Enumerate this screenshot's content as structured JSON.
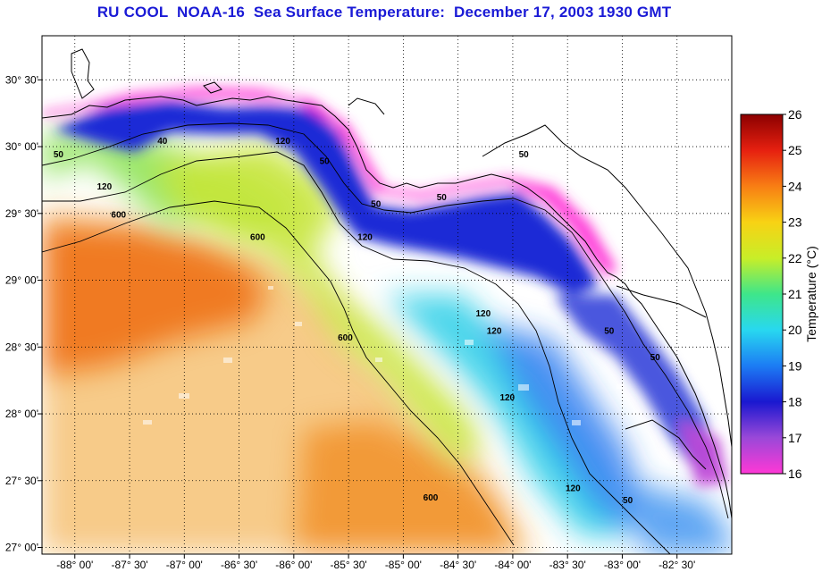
{
  "title": "RU COOL  NOAA-16  Sea Surface Temperature:  December 17, 2003 1930 GMT",
  "map": {
    "lon_range": [
      -88.3,
      -82.0
    ],
    "lat_range": [
      26.95,
      30.83
    ],
    "lon_ticks": [
      {
        "value": -88.0,
        "label": "-88° 00'"
      },
      {
        "value": -87.5,
        "label": "-87° 30'"
      },
      {
        "value": -87.0,
        "label": "-87° 00'"
      },
      {
        "value": -86.5,
        "label": "-86° 30'"
      },
      {
        "value": -86.0,
        "label": "-86° 00'"
      },
      {
        "value": -85.5,
        "label": "-85° 30'"
      },
      {
        "value": -85.0,
        "label": "-85° 00'"
      },
      {
        "value": -84.5,
        "label": "-84° 30'"
      },
      {
        "value": -84.0,
        "label": "-84° 00'"
      },
      {
        "value": -83.5,
        "label": "-83° 30'"
      },
      {
        "value": -83.0,
        "label": "-83° 00'"
      },
      {
        "value": -82.5,
        "label": "-82° 30'"
      }
    ],
    "lat_ticks": [
      {
        "value": 30.5,
        "label": "30° 30'"
      },
      {
        "value": 30.0,
        "label": "30° 00'"
      },
      {
        "value": 29.5,
        "label": "29° 30'"
      },
      {
        "value": 29.0,
        "label": "29° 00'"
      },
      {
        "value": 28.5,
        "label": "28° 30'"
      },
      {
        "value": 28.0,
        "label": "28° 00'"
      },
      {
        "value": 27.5,
        "label": "27° 30'"
      },
      {
        "value": 27.0,
        "label": "27° 00'"
      }
    ],
    "contour_labels": [
      {
        "text": "50",
        "lon": -88.15,
        "lat": 29.92
      },
      {
        "text": "120",
        "lon": -87.73,
        "lat": 29.68
      },
      {
        "text": "600",
        "lon": -87.6,
        "lat": 29.47
      },
      {
        "text": "40",
        "lon": -87.2,
        "lat": 30.02
      },
      {
        "text": "120",
        "lon": -86.1,
        "lat": 30.02
      },
      {
        "text": "600",
        "lon": -86.33,
        "lat": 29.3
      },
      {
        "text": "50",
        "lon": -85.72,
        "lat": 29.87
      },
      {
        "text": "50",
        "lon": -85.25,
        "lat": 29.55
      },
      {
        "text": "50",
        "lon": -84.65,
        "lat": 29.6
      },
      {
        "text": "120",
        "lon": -85.35,
        "lat": 29.3
      },
      {
        "text": "50",
        "lon": -83.9,
        "lat": 29.92
      },
      {
        "text": "120",
        "lon": -84.27,
        "lat": 28.73
      },
      {
        "text": "120",
        "lon": -84.17,
        "lat": 28.6
      },
      {
        "text": "600",
        "lon": -85.53,
        "lat": 28.55
      },
      {
        "text": "120",
        "lon": -84.05,
        "lat": 28.1
      },
      {
        "text": "600",
        "lon": -84.75,
        "lat": 27.35
      },
      {
        "text": "120",
        "lon": -83.45,
        "lat": 27.42
      },
      {
        "text": "50",
        "lon": -83.12,
        "lat": 28.6
      },
      {
        "text": "50",
        "lon": -82.95,
        "lat": 27.33
      },
      {
        "text": "50",
        "lon": -82.7,
        "lat": 28.4
      }
    ]
  },
  "colorbar": {
    "label": "Temperature (°C)",
    "min": 16,
    "max": 26,
    "tick_labels": [
      "16",
      "17",
      "18",
      "19",
      "20",
      "21",
      "22",
      "23",
      "24",
      "25",
      "26"
    ],
    "colors": [
      "#ff38d6",
      "#9a48d8",
      "#1a18d0",
      "#1c7cf4",
      "#28d8f0",
      "#3ee68a",
      "#c8ee28",
      "#f8d214",
      "#f87e14",
      "#e62010",
      "#8c0000"
    ]
  }
}
